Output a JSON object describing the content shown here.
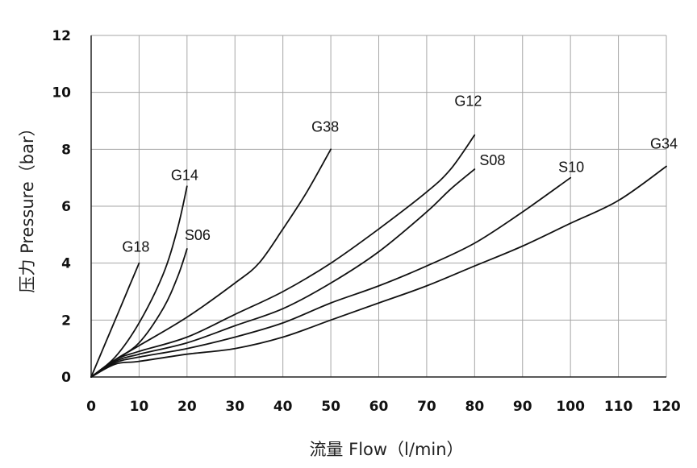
{
  "chart_data": {
    "type": "line",
    "xlabel": "流量 Flow（l/min）",
    "ylabel": "压力 Pressure（bar）",
    "xlim": [
      0,
      120
    ],
    "ylim": [
      0,
      12
    ],
    "xticks": [
      "0",
      "10",
      "20",
      "30",
      "40",
      "50",
      "60",
      "70",
      "80",
      "90",
      "100",
      "110",
      "120"
    ],
    "yticks": [
      "0",
      "2",
      "4",
      "6",
      "8",
      "10",
      "12"
    ],
    "grid": true,
    "line_color": "#111111",
    "series": [
      {
        "name": "G18",
        "x": [
          0,
          3,
          6,
          8,
          10
        ],
        "y": [
          0,
          1.2,
          2.4,
          3.2,
          4.0
        ]
      },
      {
        "name": "G14",
        "x": [
          0,
          5,
          10,
          15,
          18,
          20
        ],
        "y": [
          0,
          0.7,
          1.9,
          3.6,
          5.2,
          6.7
        ]
      },
      {
        "name": "S06",
        "x": [
          0,
          5,
          10,
          15,
          18,
          20
        ],
        "y": [
          0,
          0.6,
          1.2,
          2.4,
          3.5,
          4.5
        ]
      },
      {
        "name": "G38",
        "x": [
          0,
          5,
          10,
          20,
          30,
          35,
          40,
          45,
          50
        ],
        "y": [
          0,
          0.6,
          1.1,
          2.1,
          3.3,
          4.0,
          5.2,
          6.5,
          8.0
        ]
      },
      {
        "name": "G12",
        "x": [
          0,
          5,
          10,
          20,
          30,
          40,
          50,
          60,
          70,
          75,
          80
        ],
        "y": [
          0,
          0.6,
          0.9,
          1.4,
          2.2,
          3.0,
          4.0,
          5.2,
          6.5,
          7.3,
          8.5
        ]
      },
      {
        "name": "S08",
        "x": [
          0,
          5,
          10,
          20,
          30,
          40,
          50,
          60,
          70,
          75,
          80
        ],
        "y": [
          0,
          0.55,
          0.8,
          1.2,
          1.8,
          2.4,
          3.3,
          4.4,
          5.8,
          6.6,
          7.3
        ]
      },
      {
        "name": "S10",
        "x": [
          0,
          5,
          10,
          20,
          30,
          40,
          50,
          60,
          70,
          80,
          90,
          100
        ],
        "y": [
          0,
          0.5,
          0.7,
          1.0,
          1.4,
          1.9,
          2.6,
          3.2,
          3.9,
          4.7,
          5.8,
          7.0
        ]
      },
      {
        "name": "G34",
        "x": [
          0,
          5,
          10,
          20,
          30,
          40,
          50,
          60,
          70,
          80,
          90,
          100,
          110,
          120
        ],
        "y": [
          0,
          0.45,
          0.55,
          0.8,
          1.0,
          1.4,
          2.0,
          2.6,
          3.2,
          3.9,
          4.6,
          5.4,
          6.2,
          7.4
        ]
      }
    ]
  }
}
